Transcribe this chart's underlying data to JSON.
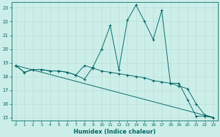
{
  "xlabel": "Humidex (Indice chaleur)",
  "bg_color": "#cceee8",
  "line_color": "#006666",
  "grid_color": "#b8ddd8",
  "xlim": [
    -0.5,
    23.5
  ],
  "ylim": [
    14.8,
    23.4
  ],
  "yticks": [
    15,
    16,
    17,
    18,
    19,
    20,
    21,
    22,
    23
  ],
  "xticks": [
    0,
    1,
    2,
    3,
    4,
    5,
    6,
    7,
    8,
    9,
    10,
    11,
    12,
    13,
    14,
    15,
    16,
    17,
    18,
    19,
    20,
    21,
    22,
    23
  ],
  "lines": [
    {
      "x": [
        0,
        1,
        2,
        3,
        4,
        5,
        6,
        7,
        8,
        9,
        10,
        11,
        12,
        13,
        14,
        15,
        16,
        17,
        18,
        19,
        20,
        21,
        22,
        23
      ],
      "y": [
        18.8,
        18.3,
        18.5,
        18.5,
        18.4,
        18.4,
        18.3,
        18.1,
        17.8,
        18.7,
        20.0,
        21.7,
        18.5,
        22.1,
        23.2,
        22.0,
        20.7,
        22.8,
        17.5,
        17.5,
        16.3,
        15.1,
        15.1,
        15.0
      ],
      "marker": true
    },
    {
      "x": [
        0,
        1,
        2,
        3,
        4,
        5,
        6,
        7,
        8,
        9,
        10,
        11,
        12,
        13,
        14,
        15,
        16,
        17,
        18,
        19,
        20,
        21,
        22,
        23
      ],
      "y": [
        18.8,
        18.3,
        18.5,
        18.5,
        18.4,
        18.4,
        18.3,
        18.1,
        18.8,
        18.6,
        18.4,
        18.3,
        18.2,
        18.1,
        18.0,
        17.9,
        17.7,
        17.6,
        17.5,
        17.3,
        17.1,
        16.0,
        15.2,
        15.0
      ],
      "marker": true
    },
    {
      "x": [
        0,
        23
      ],
      "y": [
        18.8,
        15.0
      ],
      "marker": false
    }
  ]
}
